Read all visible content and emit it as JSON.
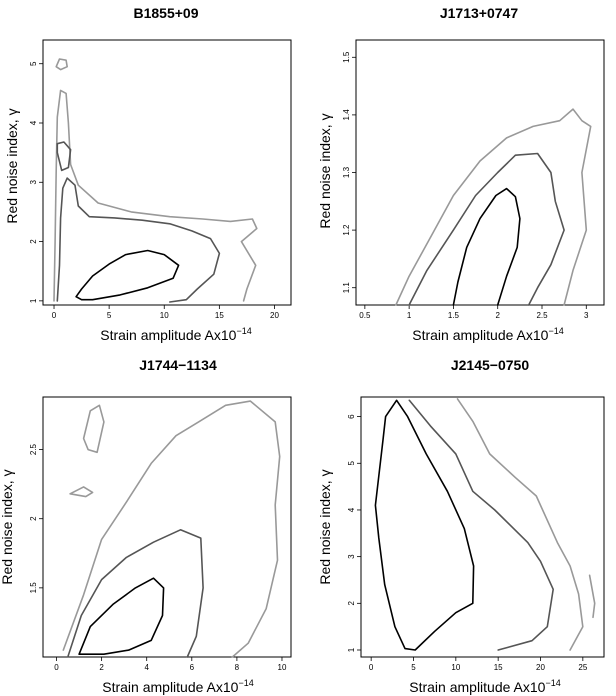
{
  "figure": {
    "panels_count": 4
  },
  "chart_data": [
    {
      "type": "contour",
      "title": "B1855+09",
      "xlabel_main": "Strain amplitude Ax10",
      "xlabel_exp": "−14",
      "ylabel": "Red noise index, γ",
      "xlim": [
        -1,
        21.5
      ],
      "ylim": [
        0.93,
        5.4
      ],
      "xticks": [
        0,
        5,
        10,
        15,
        20
      ],
      "yticks": [
        1,
        2,
        3,
        4,
        5
      ],
      "series": [
        {
          "name": "inner",
          "color": "#000000",
          "points": [
            [
              2,
              1.07
            ],
            [
              2.5,
              1.2
            ],
            [
              3.5,
              1.42
            ],
            [
              5,
              1.62
            ],
            [
              6.5,
              1.78
            ],
            [
              8.5,
              1.85
            ],
            [
              10,
              1.78
            ],
            [
              11.3,
              1.6
            ],
            [
              10.8,
              1.38
            ],
            [
              8.5,
              1.22
            ],
            [
              6,
              1.1
            ],
            [
              3.5,
              1.02
            ],
            [
              2.5,
              1.02
            ],
            [
              2,
              1.07
            ]
          ]
        },
        {
          "name": "middle",
          "color": "#555555",
          "points": [
            [
              0.3,
              1.0
            ],
            [
              0.5,
              1.6
            ],
            [
              0.6,
              2.4
            ],
            [
              0.8,
              2.9
            ],
            [
              1.2,
              3.07
            ],
            [
              1.9,
              2.95
            ],
            [
              2.2,
              2.6
            ],
            [
              3.2,
              2.42
            ],
            [
              5.5,
              2.4
            ],
            [
              8,
              2.36
            ],
            [
              10.5,
              2.3
            ],
            [
              12.5,
              2.18
            ],
            [
              14.2,
              2.05
            ],
            [
              15,
              1.8
            ],
            [
              14.5,
              1.45
            ],
            [
              13,
              1.2
            ],
            [
              12,
              1.02
            ],
            [
              10.5,
              0.98
            ]
          ]
        },
        {
          "name": "outer",
          "color": "#999999",
          "points": [
            [
              0,
              1.0
            ],
            [
              0.1,
              2.0
            ],
            [
              0.2,
              3.2
            ],
            [
              0.3,
              4.1
            ],
            [
              0.6,
              4.55
            ],
            [
              1.1,
              4.5
            ],
            [
              1.3,
              4.0
            ],
            [
              1.5,
              3.3
            ],
            [
              2.2,
              2.95
            ],
            [
              4,
              2.65
            ],
            [
              7,
              2.5
            ],
            [
              10.5,
              2.42
            ],
            [
              13.5,
              2.38
            ],
            [
              16,
              2.34
            ],
            [
              18,
              2.38
            ],
            [
              18.4,
              2.22
            ],
            [
              17,
              2.0
            ],
            [
              18.3,
              1.6
            ],
            [
              17.5,
              1.2
            ],
            [
              17.2,
              1.0
            ]
          ]
        },
        {
          "name": "outer-island-top",
          "color": "#999999",
          "points": [
            [
              0.2,
              4.95
            ],
            [
              0.5,
              5.08
            ],
            [
              1.1,
              5.06
            ],
            [
              1.2,
              4.95
            ],
            [
              0.6,
              4.9
            ],
            [
              0.2,
              4.95
            ]
          ]
        },
        {
          "name": "middle-island",
          "color": "#555555",
          "points": [
            [
              0.3,
              3.65
            ],
            [
              0.9,
              3.68
            ],
            [
              1.5,
              3.55
            ],
            [
              1.3,
              3.25
            ],
            [
              0.7,
              3.2
            ],
            [
              0.3,
              3.5
            ],
            [
              0.3,
              3.65
            ]
          ]
        }
      ]
    },
    {
      "type": "contour",
      "title": "J1713+0747",
      "xlabel_main": "Strain amplitude Ax10",
      "xlabel_exp": "−14",
      "ylabel": "Red noise index, γ",
      "xlim": [
        0.4,
        3.2
      ],
      "ylim": [
        1.07,
        1.53
      ],
      "xticks": [
        0.5,
        1.0,
        1.5,
        2.0,
        2.5,
        3.0
      ],
      "yticks": [
        1.1,
        1.2,
        1.3,
        1.4,
        1.5
      ],
      "series": [
        {
          "name": "inner",
          "color": "#000000",
          "points": [
            [
              1.5,
              1.07
            ],
            [
              1.55,
              1.11
            ],
            [
              1.65,
              1.17
            ],
            [
              1.8,
              1.22
            ],
            [
              1.98,
              1.26
            ],
            [
              2.1,
              1.272
            ],
            [
              2.2,
              1.258
            ],
            [
              2.25,
              1.22
            ],
            [
              2.22,
              1.17
            ],
            [
              2.1,
              1.12
            ],
            [
              2.0,
              1.07
            ]
          ]
        },
        {
          "name": "middle",
          "color": "#555555",
          "points": [
            [
              1.0,
              1.07
            ],
            [
              1.2,
              1.13
            ],
            [
              1.5,
              1.2
            ],
            [
              1.75,
              1.26
            ],
            [
              2.0,
              1.3
            ],
            [
              2.2,
              1.33
            ],
            [
              2.45,
              1.333
            ],
            [
              2.6,
              1.3
            ],
            [
              2.65,
              1.25
            ],
            [
              2.75,
              1.2
            ],
            [
              2.6,
              1.14
            ],
            [
              2.45,
              1.1
            ],
            [
              2.35,
              1.07
            ]
          ]
        },
        {
          "name": "outer",
          "color": "#999999",
          "points": [
            [
              0.85,
              1.07
            ],
            [
              1.0,
              1.12
            ],
            [
              1.25,
              1.19
            ],
            [
              1.5,
              1.26
            ],
            [
              1.8,
              1.32
            ],
            [
              2.1,
              1.36
            ],
            [
              2.4,
              1.38
            ],
            [
              2.7,
              1.39
            ],
            [
              2.85,
              1.41
            ],
            [
              2.95,
              1.39
            ],
            [
              3.05,
              1.38
            ],
            [
              2.95,
              1.3
            ],
            [
              3.0,
              1.2
            ],
            [
              2.85,
              1.13
            ],
            [
              2.75,
              1.07
            ]
          ]
        }
      ]
    },
    {
      "type": "contour",
      "title": "J1744−1134",
      "xlabel_main": "Strain amplitude Ax10",
      "xlabel_exp": "−14",
      "ylabel": "Red noise index, γ",
      "xlim": [
        -0.6,
        10.4
      ],
      "ylim": [
        1.0,
        2.88
      ],
      "xticks": [
        0,
        2,
        4,
        6,
        8,
        10
      ],
      "yticks": [
        1.5,
        2.0,
        2.5
      ],
      "series": [
        {
          "name": "inner",
          "color": "#000000",
          "points": [
            [
              1.0,
              1.02
            ],
            [
              1.5,
              1.22
            ],
            [
              2.5,
              1.38
            ],
            [
              3.5,
              1.5
            ],
            [
              4.3,
              1.57
            ],
            [
              4.75,
              1.5
            ],
            [
              4.7,
              1.3
            ],
            [
              4.2,
              1.12
            ],
            [
              3.2,
              1.05
            ],
            [
              2.1,
              1.02
            ],
            [
              1.0,
              1.02
            ]
          ]
        },
        {
          "name": "middle",
          "color": "#555555",
          "points": [
            [
              0.5,
              1.0
            ],
            [
              1.1,
              1.3
            ],
            [
              2,
              1.56
            ],
            [
              3.1,
              1.72
            ],
            [
              4.3,
              1.83
            ],
            [
              5.5,
              1.92
            ],
            [
              6.4,
              1.86
            ],
            [
              6.5,
              1.5
            ],
            [
              6.2,
              1.15
            ],
            [
              5.8,
              1.0
            ]
          ]
        },
        {
          "name": "outer",
          "color": "#999999",
          "points": [
            [
              0.3,
              1.05
            ],
            [
              1.2,
              1.45
            ],
            [
              2,
              1.85
            ],
            [
              3.1,
              2.12
            ],
            [
              4.2,
              2.4
            ],
            [
              5.3,
              2.6
            ],
            [
              6.3,
              2.7
            ],
            [
              7.5,
              2.82
            ],
            [
              8.6,
              2.85
            ],
            [
              9.7,
              2.7
            ],
            [
              9.9,
              2.45
            ],
            [
              9.7,
              2.1
            ],
            [
              9.8,
              1.7
            ],
            [
              9.3,
              1.35
            ],
            [
              8.5,
              1.1
            ],
            [
              7.8,
              1.0
            ]
          ]
        },
        {
          "name": "outer-island-blob",
          "color": "#999999",
          "points": [
            [
              1.2,
              2.58
            ],
            [
              1.5,
              2.78
            ],
            [
              1.9,
              2.82
            ],
            [
              2.1,
              2.7
            ],
            [
              1.8,
              2.48
            ],
            [
              1.4,
              2.5
            ],
            [
              1.2,
              2.58
            ]
          ]
        },
        {
          "name": "outer-island-small",
          "color": "#999999",
          "points": [
            [
              0.6,
              2.18
            ],
            [
              1.2,
              2.23
            ],
            [
              1.6,
              2.19
            ],
            [
              1.3,
              2.16
            ],
            [
              0.6,
              2.18
            ]
          ]
        }
      ]
    },
    {
      "type": "contour",
      "title": "J2145−0750",
      "xlabel_main": "Strain amplitude Ax10",
      "xlabel_exp": "−14",
      "ylabel": "Red noise index, γ",
      "xlim": [
        -1.2,
        27.5
      ],
      "ylim": [
        0.85,
        6.42
      ],
      "xticks": [
        0,
        5,
        10,
        15,
        20,
        25
      ],
      "yticks": [
        1,
        2,
        3,
        4,
        5,
        6
      ],
      "series": [
        {
          "name": "inner",
          "color": "#000000",
          "points": [
            [
              0.5,
              4.1
            ],
            [
              0.9,
              3.4
            ],
            [
              1.6,
              2.4
            ],
            [
              2.8,
              1.5
            ],
            [
              4.0,
              1.03
            ],
            [
              5.2,
              1.0
            ],
            [
              7.5,
              1.4
            ],
            [
              10,
              1.8
            ],
            [
              12,
              2.0
            ],
            [
              12.1,
              2.8
            ],
            [
              11,
              3.6
            ],
            [
              9,
              4.4
            ],
            [
              6.5,
              5.2
            ],
            [
              4.3,
              6.0
            ],
            [
              3.0,
              6.35
            ],
            [
              1.7,
              6.0
            ],
            [
              1.4,
              5.5
            ],
            [
              0.5,
              4.1
            ]
          ]
        },
        {
          "name": "middle",
          "color": "#555555",
          "points": [
            [
              4.5,
              6.35
            ],
            [
              7,
              5.8
            ],
            [
              10,
              5.2
            ],
            [
              12,
              4.4
            ],
            [
              14.6,
              4.0
            ],
            [
              18.5,
              3.3
            ],
            [
              20,
              2.9
            ],
            [
              21.5,
              2.3
            ],
            [
              20.8,
              1.5
            ],
            [
              19,
              1.2
            ],
            [
              15,
              1.0
            ]
          ]
        },
        {
          "name": "outer",
          "color": "#999999",
          "points": [
            [
              10.2,
              6.38
            ],
            [
              12,
              5.9
            ],
            [
              14,
              5.2
            ],
            [
              17,
              4.7
            ],
            [
              19.5,
              4.3
            ],
            [
              22,
              3.3
            ],
            [
              23.5,
              2.8
            ],
            [
              24.5,
              2.2
            ],
            [
              25,
              1.5
            ],
            [
              23.5,
              1.0
            ]
          ]
        },
        {
          "name": "outer-tail",
          "color": "#999999",
          "points": [
            [
              25.8,
              2.6
            ],
            [
              26.4,
              2.0
            ],
            [
              26.2,
              1.7
            ]
          ]
        }
      ]
    }
  ]
}
